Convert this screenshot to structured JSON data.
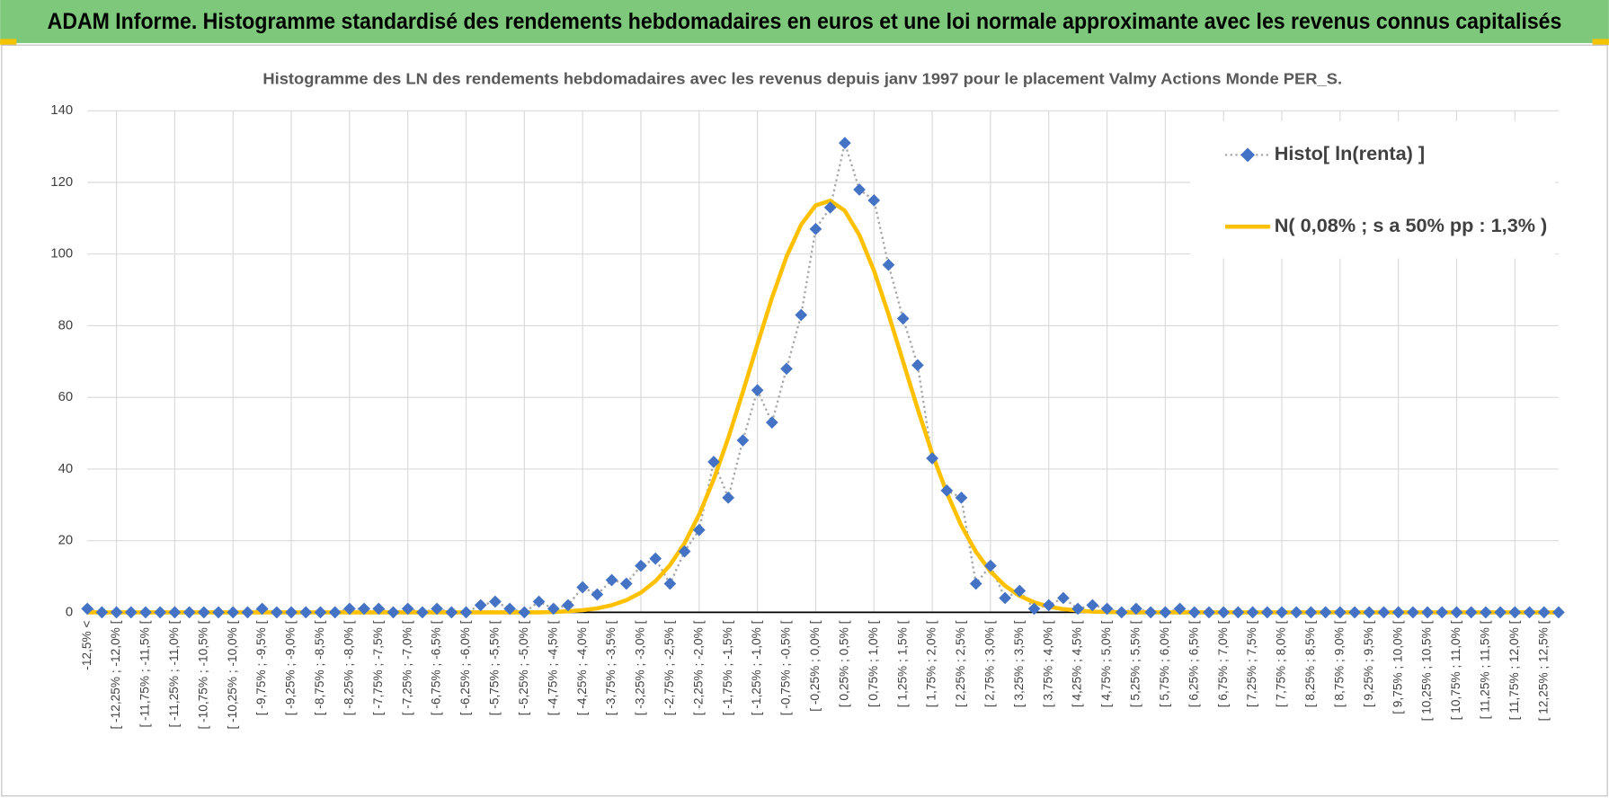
{
  "header": {
    "title": "ADAM Informe. Histogramme standardisé des rendements hebdomadaires en euros et une loi normale approximante avec les revenus connus capitalisés"
  },
  "chart_data": {
    "type": "line",
    "title": "Histogramme des LN des rendements hebdomadaires avec les revenus depuis janv 1997 pour le placement Valmy Actions Monde PER_S.",
    "categories": [
      "-12,5% <",
      null,
      "[ -12,25% ; -12,0% [",
      null,
      "[ -11,75% ; -11,5% [",
      null,
      "[ -11,25% ; -11,0% [",
      null,
      "[ -10,75% ; -10,5% [",
      null,
      "[ -10,25% ; -10,0% [",
      null,
      "[ -9,75% ; -9,5% [",
      null,
      "[ -9,25% ; -9,0% [",
      null,
      "[ -8,75% ; -8,5% [",
      null,
      "[ -8,25% ; -8,0% [",
      null,
      "[ -7,75% ; -7,5% [",
      null,
      "[ -7,25% ; -7,0% [",
      null,
      "[ -6,75% ; -6,5% [",
      null,
      "[ -6,25% ; -6,0% [",
      null,
      "[ -5,75% ; -5,5% [",
      null,
      "[ -5,25% ; -5,0% [",
      null,
      "[ -4,75% ; -4,5% [",
      null,
      "[ -4,25% ; -4,0% [",
      null,
      "[ -3,75% ; -3,5% [",
      null,
      "[ -3,25% ; -3,0% [",
      null,
      "[ -2,75% ; -2,5% [",
      null,
      "[ -2,25% ; -2,0% [",
      null,
      "[ -1,75% ; -1,5% [",
      null,
      "[ -1,25% ; -1,0% [",
      null,
      "[ -0,75% ; -0,5% [",
      null,
      "[ -0,25% ; 0,0% [",
      null,
      "[ 0,25% ; 0,5% [",
      null,
      "[ 0,75% ; 1,0% [",
      null,
      "[ 1,25% ; 1,5% [",
      null,
      "[ 1,75% ; 2,0% [",
      null,
      "[ 2,25% ; 2,5% [",
      null,
      "[ 2,75% ; 3,0% [",
      null,
      "[ 3,25% ; 3,5% [",
      null,
      "[ 3,75% ; 4,0% [",
      null,
      "[ 4,25% ; 4,5% [",
      null,
      "[ 4,75% ; 5,0% [",
      null,
      "[ 5,25% ; 5,5% [",
      null,
      "[ 5,75% ; 6,0% [",
      null,
      "[ 6,25% ; 6,5% [",
      null,
      "[ 6,75% ; 7,0% [",
      null,
      "[ 7,25% ; 7,5% [",
      null,
      "[ 7,75% ; 8,0% [",
      null,
      "[ 8,25% ; 8,5% [",
      null,
      "[ 8,75% ; 9,0% [",
      null,
      "[ 9,25% ; 9,5% [",
      null,
      "[ 9,75% ; 10,0% [",
      null,
      "[ 10,25% ; 10,5% [",
      null,
      "[ 10,75% ; 11,0% [",
      null,
      "[ 11,25% ; 11,5% [",
      null,
      "[ 11,75% ; 12,0% [",
      null,
      "[ 12,25% ; 12,5% [",
      null
    ],
    "series": [
      {
        "name": "Histo[ ln(renta) ]",
        "color": "#4472c4",
        "values": [
          1,
          0,
          0,
          0,
          0,
          0,
          0,
          0,
          0,
          0,
          0,
          0,
          1,
          0,
          0,
          0,
          0,
          0,
          1,
          1,
          1,
          0,
          1,
          0,
          1,
          0,
          0,
          2,
          3,
          1,
          0,
          3,
          1,
          2,
          7,
          5,
          9,
          8,
          13,
          15,
          8,
          17,
          23,
          42,
          32,
          48,
          62,
          53,
          68,
          83,
          107,
          113,
          131,
          118,
          115,
          97,
          82,
          69,
          43,
          34,
          32,
          8,
          13,
          4,
          6,
          1,
          2,
          4,
          1,
          2,
          1,
          0,
          1,
          0,
          0,
          1,
          0,
          0,
          0,
          0,
          0,
          0,
          0,
          0,
          0,
          0,
          0,
          0,
          0,
          0,
          0,
          0,
          0,
          0,
          0,
          0,
          0,
          0,
          0,
          0,
          0,
          0
        ]
      },
      {
        "name": "N( 0,08% ; s a 50% pp : 1,3% )",
        "color": "#ffc000",
        "values": [
          0,
          0,
          0,
          0,
          0,
          0,
          0,
          0,
          0,
          0,
          0,
          0,
          0,
          0,
          0,
          0,
          0,
          0,
          0,
          0,
          0,
          0,
          0,
          0,
          0,
          0,
          0,
          0,
          0,
          0,
          0,
          0,
          0.1,
          0.3,
          0.6,
          1.1,
          2.0,
          3.4,
          5.5,
          8.7,
          13.2,
          19.3,
          27.3,
          37.1,
          48.7,
          61.5,
          74.8,
          87.8,
          99.3,
          108.2,
          113.6,
          114.9,
          112.1,
          105.3,
          95.4,
          83.2,
          70.0,
          56.8,
          44.3,
          33.4,
          24.2,
          16.9,
          11.4,
          7.4,
          4.6,
          2.8,
          1.6,
          0.9,
          0.5,
          0.2,
          0.1,
          0,
          0,
          0,
          0,
          0,
          0,
          0,
          0,
          0,
          0,
          0,
          0,
          0,
          0,
          0,
          0,
          0,
          0,
          0,
          0,
          0,
          0,
          0,
          0,
          0,
          0,
          0,
          0,
          0,
          0,
          0
        ]
      }
    ],
    "ylim": [
      0,
      140
    ],
    "yticks": [
      0,
      20,
      40,
      60,
      80,
      100,
      120,
      140
    ],
    "grid": true,
    "legend": "top-right"
  }
}
